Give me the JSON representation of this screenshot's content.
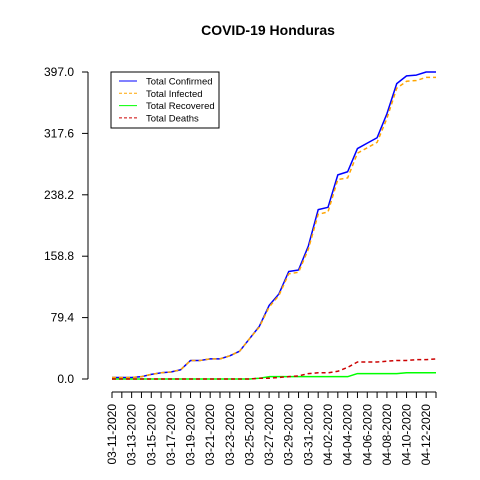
{
  "chart_data": {
    "type": "line",
    "title": "COVID-19 Honduras",
    "xlabel": "",
    "ylabel": "",
    "x": [
      "03-11-2020",
      "03-12-2020",
      "03-13-2020",
      "03-14-2020",
      "03-15-2020",
      "03-16-2020",
      "03-17-2020",
      "03-18-2020",
      "03-19-2020",
      "03-20-2020",
      "03-21-2020",
      "03-22-2020",
      "03-23-2020",
      "03-24-2020",
      "03-25-2020",
      "03-26-2020",
      "03-27-2020",
      "03-28-2020",
      "03-29-2020",
      "03-30-2020",
      "03-31-2020",
      "04-01-2020",
      "04-02-2020",
      "04-03-2020",
      "04-04-2020",
      "04-05-2020",
      "04-06-2020",
      "04-07-2020",
      "04-08-2020",
      "04-09-2020",
      "04-10-2020",
      "04-11-2020",
      "04-12-2020",
      "04-13-2020"
    ],
    "x_tick_labels": [
      "03-11-2020",
      "03-13-2020",
      "03-15-2020",
      "03-17-2020",
      "03-19-2020",
      "03-21-2020",
      "03-23-2020",
      "03-25-2020",
      "03-27-2020",
      "03-29-2020",
      "03-31-2020",
      "04-02-2020",
      "04-04-2020",
      "04-06-2020",
      "04-08-2020",
      "04-10-2020",
      "04-12-2020"
    ],
    "y_ticks": [
      0.0,
      79.4,
      158.8,
      238.2,
      317.6,
      397.0
    ],
    "y_tick_labels": [
      "0.0",
      "79.4",
      "158.8",
      "238.2",
      "317.6",
      "397.0"
    ],
    "ylim": [
      0,
      397
    ],
    "grid": false,
    "legend_position": "top-left",
    "series": [
      {
        "name": "Total Confirmed",
        "color": "#0000ff",
        "dash": "solid",
        "values": [
          2,
          2,
          2,
          3,
          6,
          8,
          9,
          12,
          24,
          24,
          26,
          26,
          30,
          36,
          52,
          68,
          95,
          110,
          139,
          141,
          172,
          219,
          222,
          264,
          268,
          298,
          305,
          312,
          343,
          382,
          392,
          393,
          397,
          397
        ]
      },
      {
        "name": "Total Infected",
        "color": "#ffa500",
        "dash": "dashed",
        "values": [
          2,
          2,
          2,
          3,
          6,
          8,
          9,
          12,
          24,
          24,
          26,
          26,
          30,
          36,
          52,
          67,
          93,
          108,
          136,
          138,
          168,
          213,
          216,
          258,
          260,
          292,
          299,
          306,
          337,
          376,
          385,
          386,
          390,
          390
        ]
      },
      {
        "name": "Total Recovered",
        "color": "#00ff00",
        "dash": "solid",
        "values": [
          0,
          0,
          0,
          0,
          0,
          0,
          0,
          0,
          0,
          0,
          0,
          0,
          0,
          0,
          0,
          1,
          3,
          3,
          3,
          3,
          3,
          3,
          3,
          3,
          3,
          7,
          7,
          7,
          7,
          7,
          8,
          8,
          8,
          8
        ]
      },
      {
        "name": "Total Deaths",
        "color": "#cc0000",
        "dash": "dashed",
        "values": [
          0,
          0,
          0,
          0,
          0,
          0,
          0,
          0,
          0,
          0,
          0,
          0,
          0,
          0,
          0,
          1,
          1,
          2,
          3,
          4,
          7,
          8,
          8,
          10,
          15,
          22,
          22,
          22,
          23,
          24,
          24,
          25,
          25,
          26
        ]
      }
    ]
  }
}
